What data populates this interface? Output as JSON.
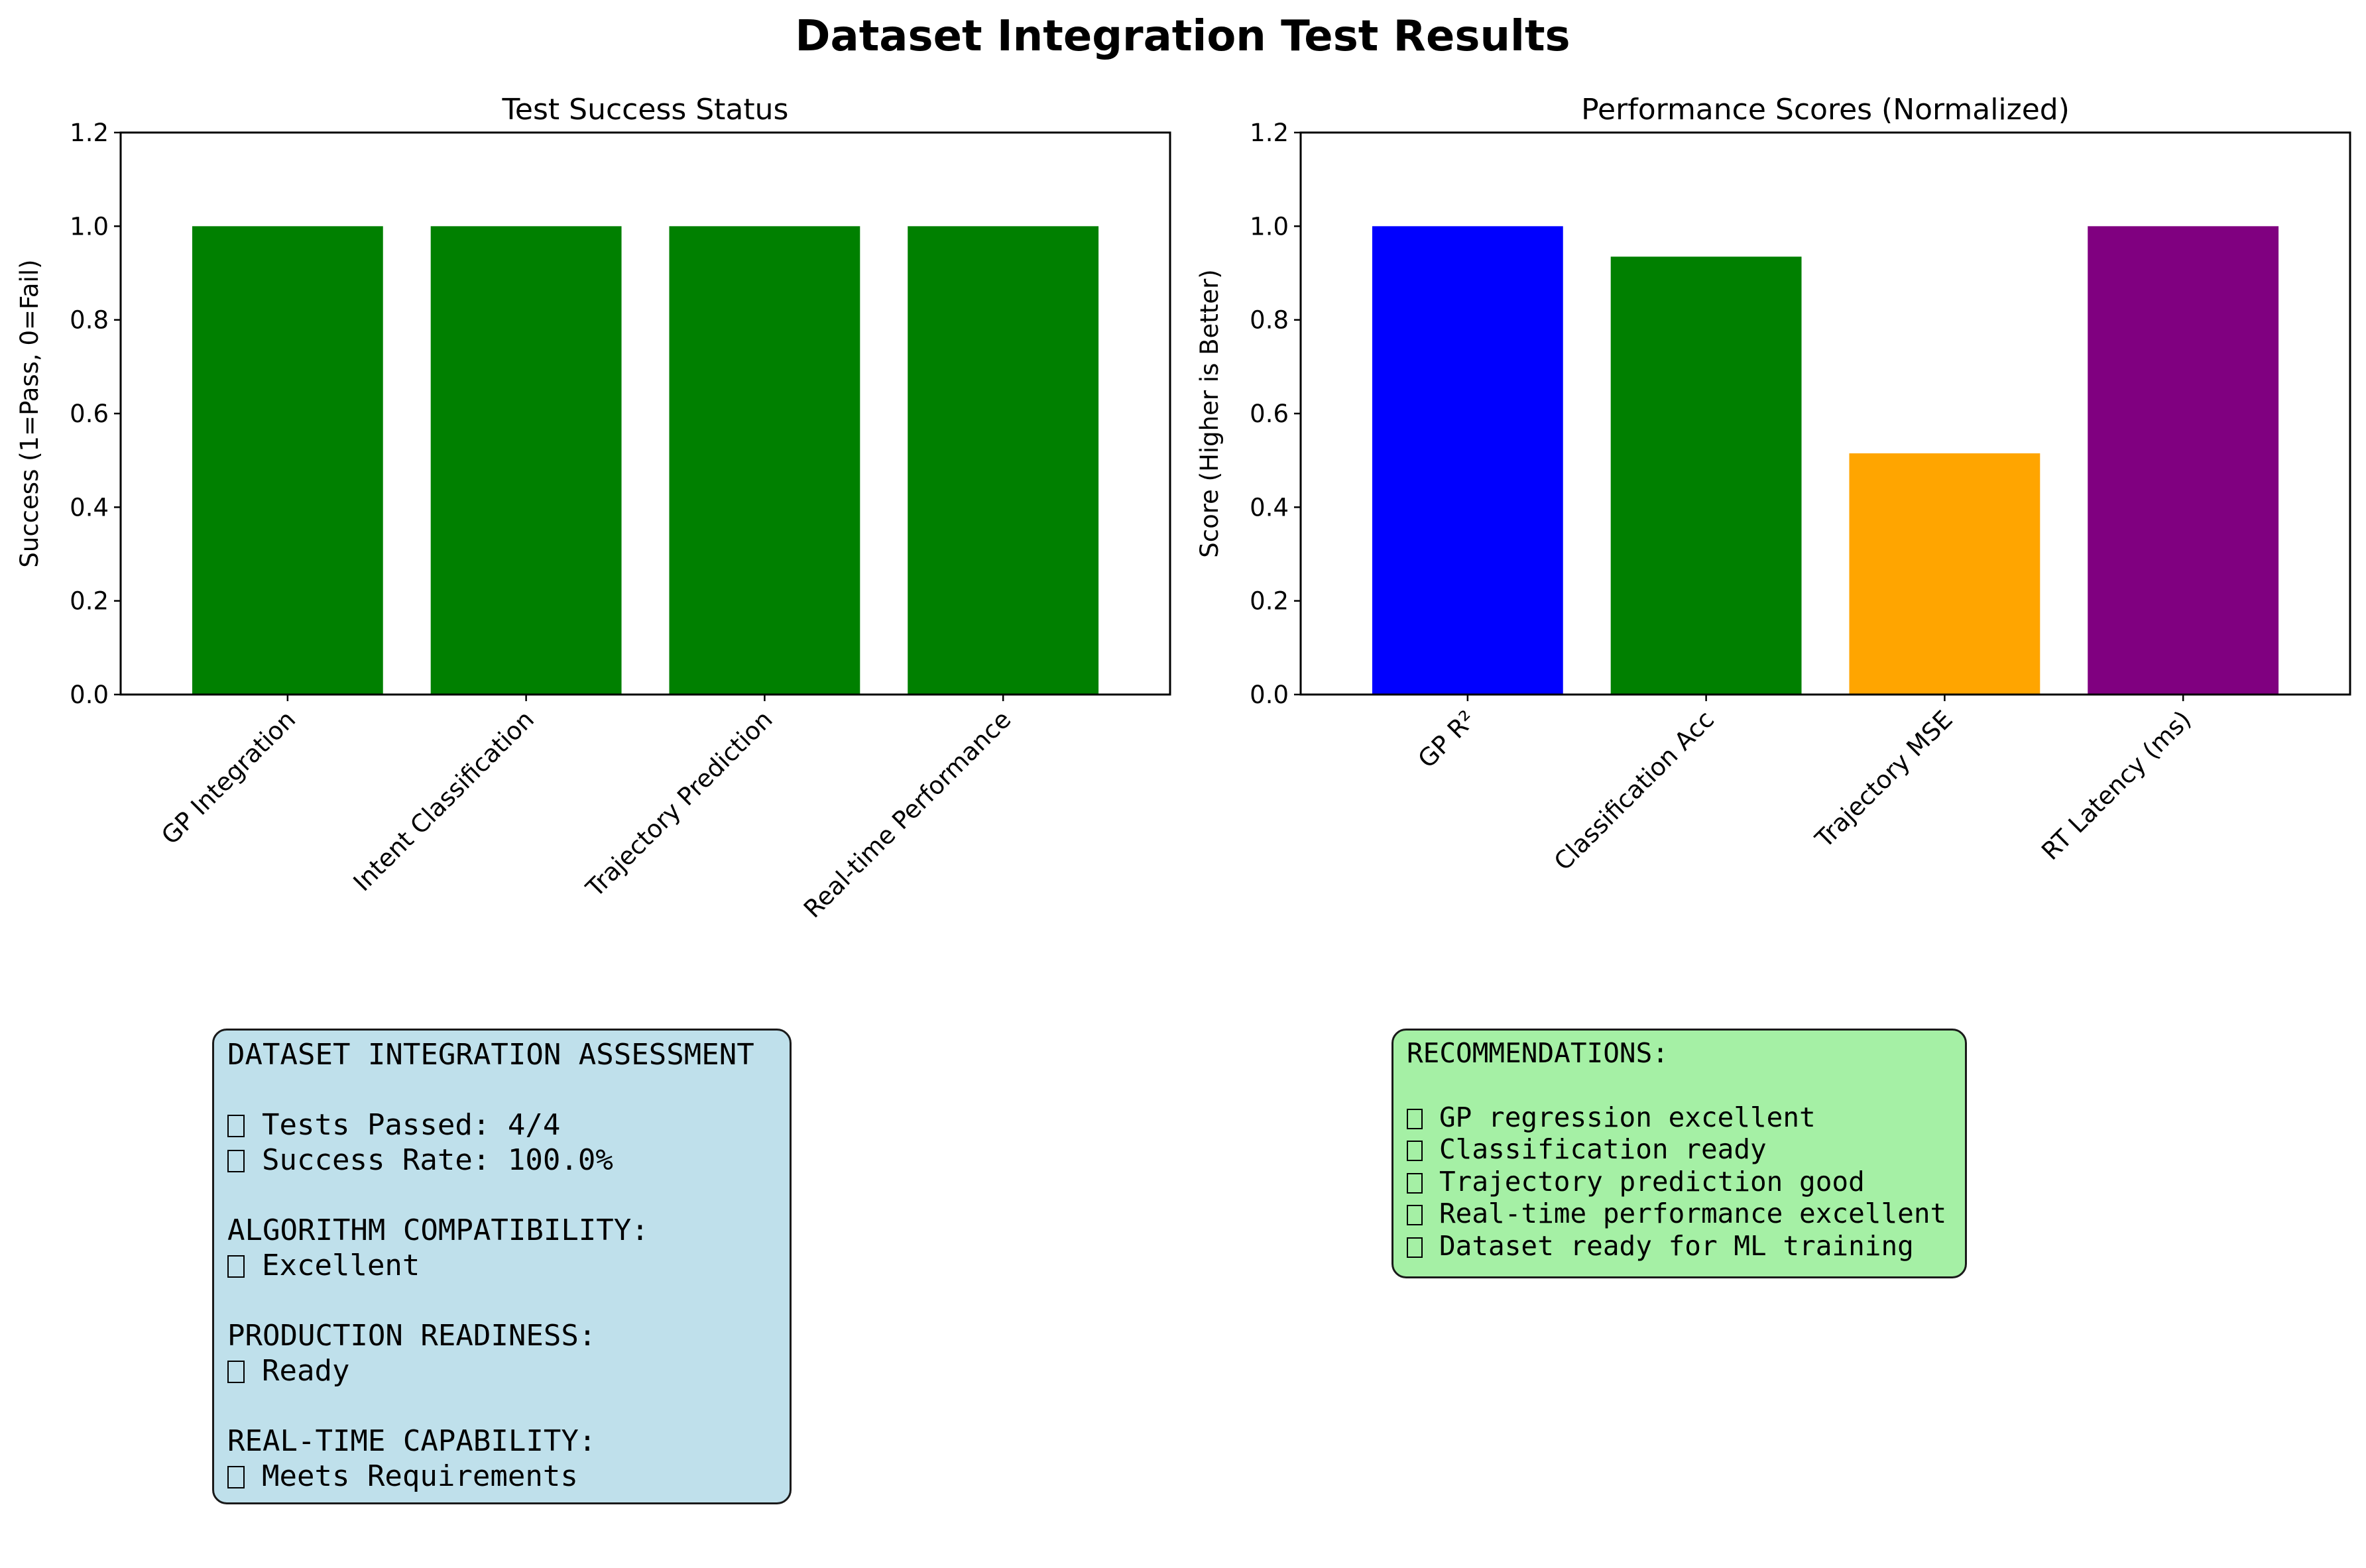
{
  "suptitle": "Dataset Integration Test Results",
  "chart_data": [
    {
      "type": "bar",
      "title": "Test Success Status",
      "xlabel": "",
      "ylabel": "Success (1=Pass, 0=Fail)",
      "categories": [
        "GP Integration",
        "Intent Classification",
        "Trajectory Prediction",
        "Real-time Performance"
      ],
      "values": [
        1,
        1,
        1,
        1
      ],
      "colors": [
        "#008000",
        "#008000",
        "#008000",
        "#008000"
      ],
      "ylim": [
        0,
        1.2
      ],
      "yticks": [
        "0.0",
        "0.2",
        "0.4",
        "0.6",
        "0.8",
        "1.0",
        "1.2"
      ],
      "grid": false
    },
    {
      "type": "bar",
      "title": "Performance Scores (Normalized)",
      "xlabel": "",
      "ylabel": "Score (Higher is Better)",
      "categories": [
        "GP R²",
        "Classification Acc",
        "Trajectory MSE",
        "RT Latency (ms)"
      ],
      "values": [
        1.0,
        0.935,
        0.515,
        1.0
      ],
      "colors": [
        "#0000ff",
        "#008000",
        "#ffa500",
        "#800080"
      ],
      "ylim": [
        0,
        1.2
      ],
      "yticks": [
        "0.0",
        "0.2",
        "0.4",
        "0.6",
        "0.8",
        "1.0",
        "1.2"
      ],
      "grid": false
    }
  ],
  "assessment": {
    "heading": "DATASET INTEGRATION ASSESSMENT",
    "tests_passed": "Tests Passed: 4/4",
    "success_rate": "Success Rate: 100.0%",
    "compat_heading": "ALGORITHM COMPATIBILITY:",
    "compat_value": "Excellent",
    "prod_heading": "PRODUCTION READINESS:",
    "prod_value": "Ready",
    "rt_heading": "REAL-TIME CAPABILITY:",
    "rt_value": "Meets Requirements"
  },
  "recommendations": {
    "heading": "RECOMMENDATIONS:",
    "items": [
      "GP regression excellent",
      "Classification ready",
      "Trajectory prediction good",
      "Real-time performance excellent",
      "Dataset ready for ML training"
    ]
  }
}
